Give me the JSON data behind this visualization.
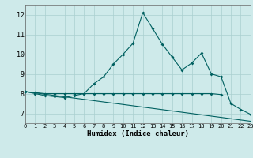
{
  "xlabel": "Humidex (Indice chaleur)",
  "bg_color": "#ceeaea",
  "grid_color": "#aacfcf",
  "line_color": "#006060",
  "xlim": [
    0,
    23
  ],
  "ylim": [
    6.5,
    12.5
  ],
  "xticks": [
    0,
    1,
    2,
    3,
    4,
    5,
    6,
    7,
    8,
    9,
    10,
    11,
    12,
    13,
    14,
    15,
    16,
    17,
    18,
    19,
    20,
    21,
    22,
    23
  ],
  "yticks": [
    7,
    8,
    9,
    10,
    11,
    12
  ],
  "main_x": [
    0,
    1,
    2,
    3,
    4,
    5,
    6,
    7,
    8,
    9,
    10,
    11,
    12,
    13,
    14,
    15,
    16,
    17,
    18,
    19,
    20,
    21,
    22,
    23
  ],
  "main_y": [
    8.1,
    8.0,
    7.9,
    7.85,
    7.8,
    7.9,
    8.0,
    8.5,
    8.85,
    9.5,
    10.0,
    10.55,
    12.1,
    11.3,
    10.5,
    9.85,
    9.2,
    9.55,
    10.05,
    9.0,
    8.85,
    7.5,
    7.2,
    6.95
  ],
  "line2_x": [
    0,
    1,
    2,
    3,
    4,
    5,
    6,
    7,
    8,
    9,
    10,
    11,
    12,
    13,
    14,
    15,
    16,
    17,
    18,
    19,
    20
  ],
  "line2_y": [
    8.1,
    8.05,
    8.0,
    8.0,
    8.0,
    8.0,
    8.0,
    8.0,
    8.0,
    8.0,
    8.0,
    8.0,
    8.0,
    8.0,
    8.0,
    8.0,
    8.0,
    8.0,
    8.0,
    8.0,
    7.95
  ],
  "line3_x": [
    0,
    23
  ],
  "line3_y": [
    8.1,
    6.6
  ]
}
